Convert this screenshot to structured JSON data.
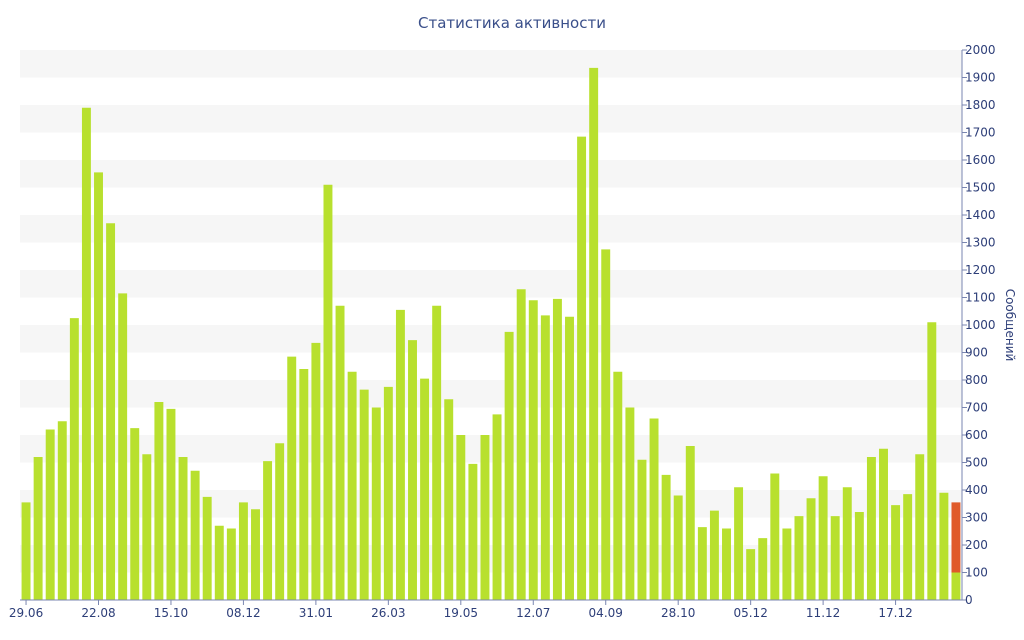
{
  "chart_data": {
    "type": "bar",
    "title": "Статистика активности",
    "ylabel": "Сообщений",
    "y_axis_side": "right",
    "ylim": [
      0,
      2000
    ],
    "yticks": [
      0,
      100,
      200,
      300,
      400,
      500,
      600,
      700,
      800,
      900,
      1000,
      1100,
      1200,
      1300,
      1400,
      1500,
      1600,
      1700,
      1800,
      1900,
      2000
    ],
    "x_tick_labels": [
      {
        "label": "29.06",
        "index": 0
      },
      {
        "label": "22.08",
        "index": 6
      },
      {
        "label": "15.10",
        "index": 12
      },
      {
        "label": "08.12",
        "index": 18
      },
      {
        "label": "31.01",
        "index": 24
      },
      {
        "label": "26.03",
        "index": 30
      },
      {
        "label": "19.05",
        "index": 36
      },
      {
        "label": "12.07",
        "index": 42
      },
      {
        "label": "04.09",
        "index": 48
      },
      {
        "label": "28.10",
        "index": 54
      },
      {
        "label": "05.12",
        "index": 60
      },
      {
        "label": "11.12",
        "index": 66
      },
      {
        "label": "17.12",
        "index": 72
      }
    ],
    "series": [
      {
        "color": "#b8e02e",
        "values": [
          355,
          520,
          620,
          650,
          1025,
          1790,
          1555,
          1370,
          1115,
          625,
          530,
          720,
          695,
          520,
          470,
          375,
          270,
          260,
          355,
          330,
          505,
          570,
          885,
          840,
          935,
          1510,
          1070,
          830,
          765,
          700,
          775,
          1055,
          945,
          805,
          1070,
          730,
          600,
          495,
          600,
          675,
          975,
          1130,
          1090,
          1035,
          1095,
          1030,
          1685,
          1935,
          1275,
          830,
          700,
          510,
          660,
          455,
          380,
          560,
          265,
          325,
          260,
          410,
          185,
          225,
          460,
          260,
          305,
          370,
          450,
          305,
          410,
          320,
          520,
          550,
          345,
          385,
          530,
          1010,
          390,
          100
        ]
      },
      {
        "color": "#e05a2a",
        "stacked_on_last_bar": true,
        "values": [
          255
        ]
      }
    ],
    "grid": "horizontal bands",
    "legend": "none"
  }
}
